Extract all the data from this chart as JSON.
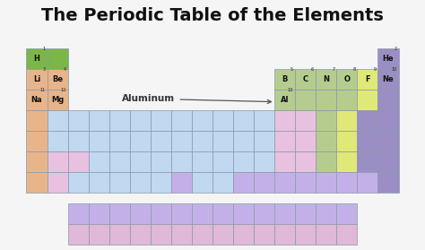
{
  "title": "The Periodic Table of the Elements",
  "title_fontsize": 14,
  "background_color": "#f5f5f5",
  "annotation_text": "Aluminum",
  "annotation_fontsize": 7.5,
  "elements": [
    {
      "symbol": "H",
      "atomic": 1,
      "col": 0,
      "row": 0,
      "color": "#7ab648"
    },
    {
      "symbol": "He",
      "atomic": 2,
      "col": 17,
      "row": 0,
      "color": "#9b8ec4"
    },
    {
      "symbol": "Li",
      "atomic": 3,
      "col": 0,
      "row": 1,
      "color": "#e8b48a"
    },
    {
      "symbol": "Be",
      "atomic": 4,
      "col": 1,
      "row": 1,
      "color": "#e8b48a"
    },
    {
      "symbol": "B",
      "atomic": 5,
      "col": 12,
      "row": 1,
      "color": "#b5cc8e"
    },
    {
      "symbol": "C",
      "atomic": 6,
      "col": 13,
      "row": 1,
      "color": "#b5cc8e"
    },
    {
      "symbol": "N",
      "atomic": 7,
      "col": 14,
      "row": 1,
      "color": "#b5cc8e"
    },
    {
      "symbol": "O",
      "atomic": 8,
      "col": 15,
      "row": 1,
      "color": "#b5cc8e"
    },
    {
      "symbol": "F",
      "atomic": 9,
      "col": 16,
      "row": 1,
      "color": "#e0e878"
    },
    {
      "symbol": "Ne",
      "atomic": 10,
      "col": 17,
      "row": 1,
      "color": "#9b8ec4"
    },
    {
      "symbol": "Na",
      "atomic": 11,
      "col": 0,
      "row": 2,
      "color": "#e8b48a"
    },
    {
      "symbol": "Mg",
      "atomic": 12,
      "col": 1,
      "row": 2,
      "color": "#e8b48a"
    },
    {
      "symbol": "Al",
      "atomic": 13,
      "col": 12,
      "row": 2,
      "color": "#b5cc8e"
    }
  ],
  "grid_color": "#8899aa",
  "grid_lw": 0.5,
  "cell_colors": {
    "orange": "#e8b48a",
    "blue": "#c0d8f0",
    "green": "#b5cc8e",
    "yellow": "#e0e878",
    "purple": "#9b8ec4",
    "pink": "#e8c0e0",
    "lavender": "#c4b0e0",
    "mauve": "#e0b8d8"
  },
  "rows_layout": [
    [
      0,
      0,
      -1,
      -1,
      -1,
      -1,
      -1,
      -1,
      -1,
      -1,
      -1,
      -1,
      -1,
      -1,
      -1,
      -1,
      -1,
      4
    ],
    [
      1,
      1,
      -1,
      -1,
      -1,
      -1,
      -1,
      -1,
      -1,
      -1,
      -1,
      -1,
      2,
      2,
      2,
      2,
      3,
      4
    ],
    [
      1,
      1,
      -1,
      -1,
      -1,
      -1,
      -1,
      -1,
      -1,
      -1,
      -1,
      -1,
      2,
      2,
      2,
      2,
      3,
      4
    ],
    [
      1,
      5,
      6,
      6,
      6,
      6,
      6,
      6,
      6,
      6,
      6,
      6,
      7,
      7,
      2,
      3,
      4,
      4
    ],
    [
      1,
      5,
      6,
      6,
      6,
      6,
      6,
      6,
      6,
      6,
      6,
      6,
      7,
      7,
      2,
      3,
      4,
      4
    ],
    [
      1,
      8,
      8,
      6,
      6,
      6,
      6,
      6,
      6,
      6,
      6,
      6,
      8,
      8,
      2,
      3,
      4,
      4
    ],
    [
      1,
      8,
      6,
      6,
      6,
      6,
      6,
      9,
      6,
      6,
      9,
      9,
      9,
      9,
      9,
      9,
      9,
      4
    ]
  ],
  "color_map": {
    "-1": null,
    "0": "#7ab648",
    "1": "#e8b48a",
    "2": "#b5cc8e",
    "3": "#e0e878",
    "4": "#9b8ec4",
    "5": "#c0d8f0",
    "6": "#c0d8f0",
    "7": "#e8c0e0",
    "8": "#e8c0e0",
    "9": "#c4b0e8"
  },
  "lant_row_colors": [
    8,
    8,
    8,
    8,
    8,
    8,
    8,
    8,
    8,
    8,
    8,
    8,
    8,
    8
  ],
  "act_row_colors": [
    10,
    10,
    10,
    10,
    10,
    10,
    10,
    10,
    10,
    10,
    10,
    10,
    10,
    10
  ],
  "lant_act_color_map": {
    "8": "#c4b0e8",
    "10": "#e0b8d8"
  }
}
